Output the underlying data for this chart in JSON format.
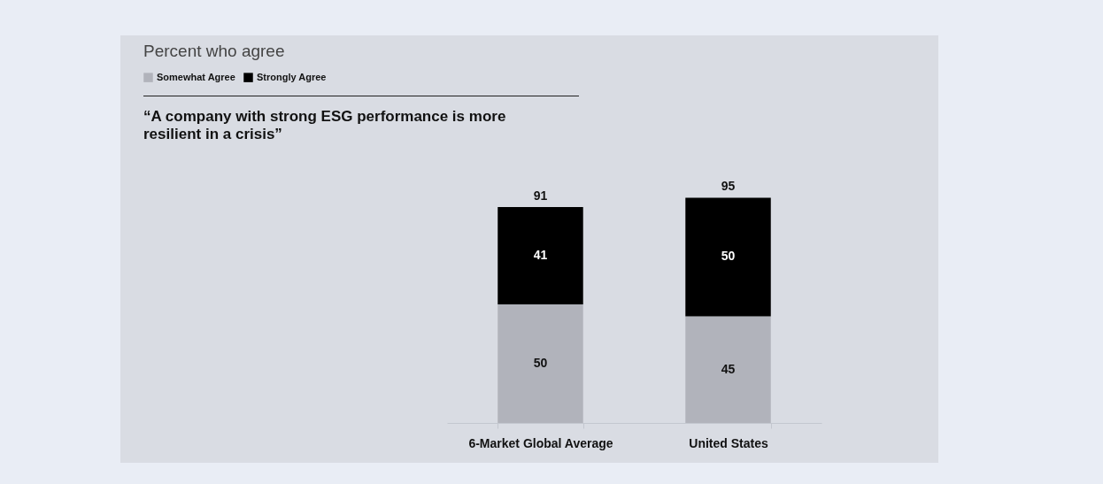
{
  "chart_data": {
    "type": "bar",
    "title": "Percent who agree",
    "subtitle": "“A company with strong ESG performance is more resilient in a crisis”",
    "categories": [
      "6-Market Global Average",
      "United States"
    ],
    "stacked": true,
    "data_labels": true,
    "totals": [
      "91",
      "95"
    ],
    "legend": "top left",
    "grid": false,
    "series": [
      {
        "name": "Somewhat Agree",
        "color": "#b1b3bb",
        "values": [
          50,
          45
        ]
      },
      {
        "name": "Strongly Agree",
        "color": "#000000",
        "values": [
          41,
          50
        ]
      }
    ]
  }
}
